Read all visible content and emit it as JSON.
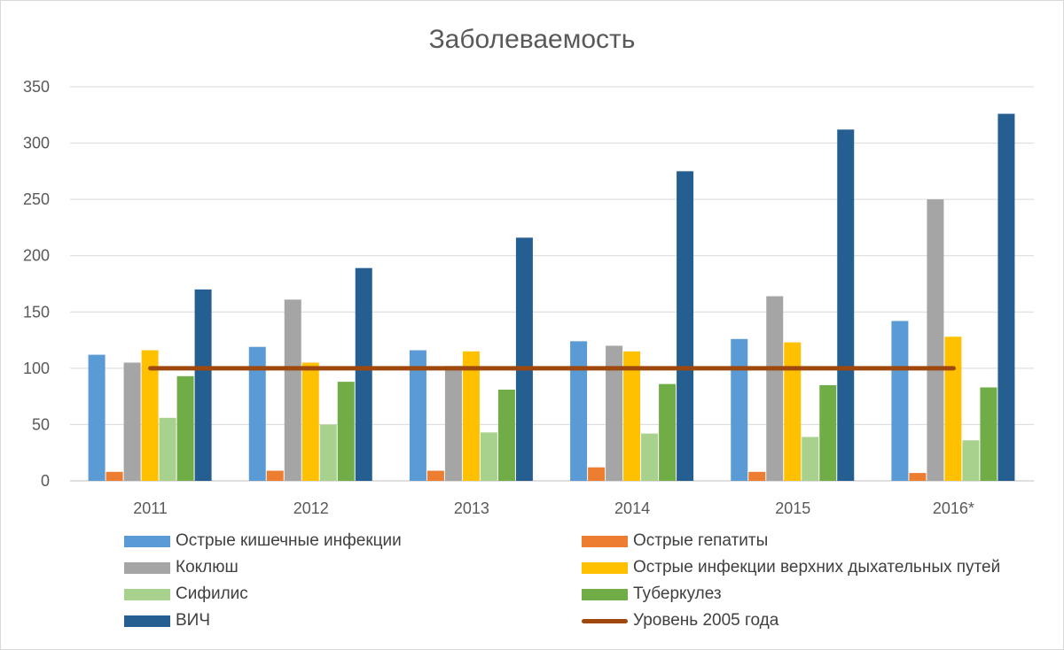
{
  "chart_data": {
    "type": "bar",
    "title": "Заболеваемость",
    "xlabel": "",
    "ylabel": "",
    "ylim": [
      0,
      350
    ],
    "yticks": [
      0,
      50,
      100,
      150,
      200,
      250,
      300,
      350
    ],
    "grid": true,
    "legend_position": "bottom",
    "categories": [
      "2011",
      "2012",
      "2013",
      "2014",
      "2015",
      "2016*"
    ],
    "series": [
      {
        "name": "Острые кишечные инфекции",
        "color": "#5b9bd5",
        "values": [
          112,
          119,
          116,
          124,
          126,
          142
        ]
      },
      {
        "name": "Острые гепатиты",
        "color": "#ed7d31",
        "values": [
          8,
          9,
          9,
          12,
          8,
          7
        ]
      },
      {
        "name": "Коклюш",
        "color": "#a5a5a5",
        "values": [
          105,
          161,
          102,
          120,
          164,
          250
        ]
      },
      {
        "name": "Острые инфекции верхних дыхательных путей",
        "color": "#ffc000",
        "values": [
          116,
          105,
          115,
          115,
          123,
          128
        ]
      },
      {
        "name": "Сифилис",
        "color": "#a9d18e",
        "values": [
          56,
          50,
          43,
          42,
          39,
          36
        ]
      },
      {
        "name": "Туберкулез",
        "color": "#70ad47",
        "values": [
          93,
          88,
          81,
          86,
          85,
          83
        ]
      },
      {
        "name": "ВИЧ",
        "color": "#255e91",
        "values": [
          170,
          189,
          216,
          275,
          312,
          326
        ]
      }
    ],
    "reference_line": {
      "name": "Уровень 2005 года",
      "color": "#9e480e",
      "value": 100
    }
  }
}
